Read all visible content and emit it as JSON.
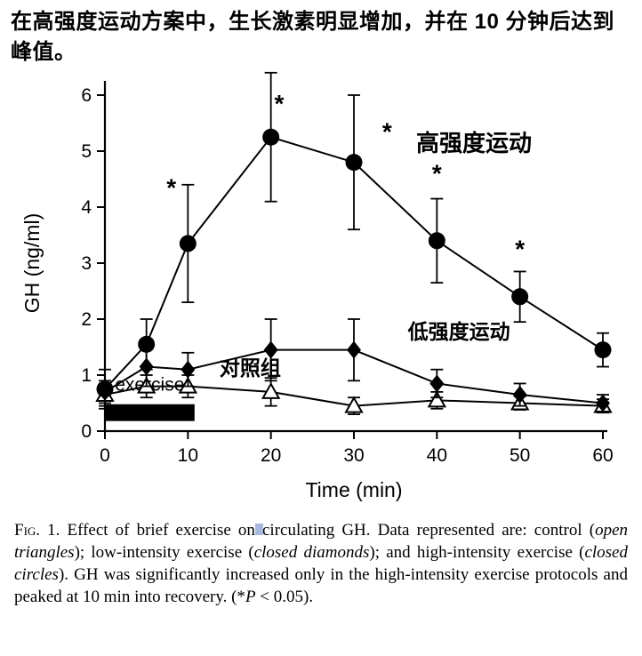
{
  "heading": {
    "text": "在高强度运动方案中，生长激素明显增加，并在 10 分钟后达到峰值。"
  },
  "chart_data": {
    "type": "line",
    "title": "",
    "xlabel": "Time (min)",
    "ylabel": "GH (ng/ml)",
    "xlim": [
      0,
      60
    ],
    "ylim": [
      0,
      6
    ],
    "xticks": [
      0,
      10,
      20,
      30,
      40,
      50,
      60
    ],
    "yticks": [
      0,
      1,
      2,
      3,
      4,
      5,
      6
    ],
    "grid": false,
    "legend_position": "inline-labels",
    "x": [
      0,
      5,
      10,
      20,
      30,
      40,
      50,
      60
    ],
    "series": [
      {
        "name": "control",
        "label": "对照组",
        "marker": "open-triangle",
        "values": [
          0.65,
          0.8,
          0.8,
          0.7,
          0.45,
          0.55,
          0.5,
          0.45
        ],
        "errors": [
          0.2,
          0.2,
          0.2,
          0.25,
          0.15,
          0.15,
          0.12,
          0.12
        ],
        "label_pos": {
          "x": 17.5,
          "y": 1.0,
          "anchor": "middle",
          "size": 23
        }
      },
      {
        "name": "low-intensity-exercise",
        "label": "低强度运动",
        "marker": "closed-diamond",
        "values": [
          0.7,
          1.15,
          1.1,
          1.45,
          1.45,
          0.85,
          0.65,
          0.5
        ],
        "errors": [
          0.2,
          0.35,
          0.3,
          0.55,
          0.55,
          0.25,
          0.2,
          0.15
        ],
        "label_pos": {
          "x": 36.5,
          "y": 1.65,
          "anchor": "start",
          "size": 23
        }
      },
      {
        "name": "high-intensity-exercise",
        "label": "高强度运动",
        "marker": "closed-circle",
        "values": [
          0.75,
          1.55,
          3.35,
          5.25,
          4.8,
          3.4,
          2.4,
          1.45
        ],
        "errors": [
          0.35,
          0.45,
          1.05,
          1.15,
          1.2,
          0.75,
          0.45,
          0.3
        ],
        "label_pos": {
          "x": 37.5,
          "y": 5.0,
          "anchor": "start",
          "size": 26
        },
        "significance": {
          "symbol": "*",
          "points": [
            {
              "x": 8.0,
              "y": 4.2
            },
            {
              "x": 21.0,
              "y": 5.7
            },
            {
              "x": 34.0,
              "y": 5.2
            },
            {
              "x": 40.0,
              "y": 4.45
            },
            {
              "x": 50.0,
              "y": 3.1
            }
          ]
        }
      }
    ],
    "exercise_bar": {
      "label": "exercise",
      "x_start": 0,
      "x_end": 10.8,
      "y_bottom": 0.18,
      "y_top": 0.48,
      "label_x": 1.2,
      "label_y": 0.72
    }
  },
  "caption": {
    "segments": [
      {
        "text": "Fig. 1.",
        "style": "smallcaps"
      },
      {
        "text": " Effect of brief exercise on circulating GH. Data represented are: control (",
        "style": "normal"
      },
      {
        "text": "open triangles",
        "style": "italic"
      },
      {
        "text": "); low-intensity exercise (",
        "style": "normal"
      },
      {
        "text": "closed diamonds",
        "style": "italic"
      },
      {
        "text": "); and high-intensity exercise (",
        "style": "normal"
      },
      {
        "text": "closed circles",
        "style": "italic"
      },
      {
        "text": "). GH was significantly increased only in the high-intensity exercise protocols and peaked at 10 min into recovery. (*",
        "style": "normal"
      },
      {
        "text": "P",
        "style": "italic"
      },
      {
        "text": " < 0.05).",
        "style": "normal"
      }
    ]
  },
  "colors": {
    "ink": "#000000",
    "background": "#ffffff",
    "cursor_artifact": "#a9b9dd"
  }
}
